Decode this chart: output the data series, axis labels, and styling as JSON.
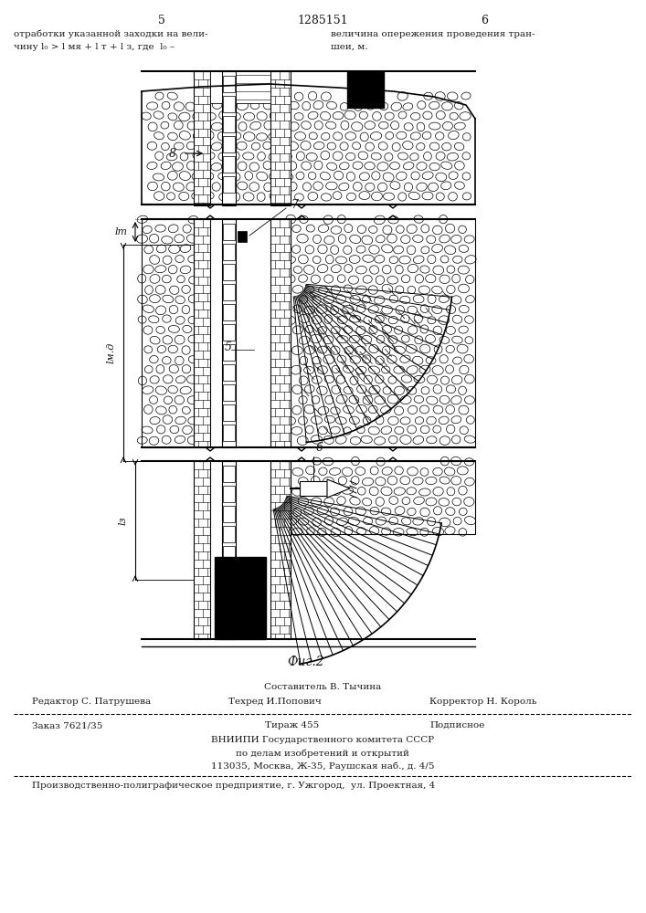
{
  "page_number_left": "5",
  "page_number_center": "1285151",
  "page_number_right": "6",
  "top_text_left1": "отработки указанной заходки на вели-",
  "top_text_left2": "чину l₀ > l мя + l т + l з, где  l₀ –",
  "top_text_right1": "величина опережения проведения тран-",
  "top_text_right2": "шеи, м.",
  "fig_caption": "Фиг.2",
  "composer_label": "Составитель В. Тычина",
  "editor_label": "Редактор С. Патрушева",
  "techred_label": "Техред И.Попович",
  "corrector_label": "Корректор Н. Король",
  "order_label": "Заказ 7621/35",
  "tirazh_label": "Тираж 455",
  "podpisnoe_label": "Подписное",
  "vniiipi_label": "ВНИИПИ Государственного комитета СССР",
  "po_delam_label": "по делам изобретений и открытий",
  "address_label": "113035, Москва, Ж-35, Раушская наб., д. 4/5",
  "factory_label": "Производственно-полиграфическое предприятие, г. Ужгород,  ул. Проектная, 4",
  "label_5": "5",
  "label_6": "6",
  "label_7": "7",
  "label_8": "8",
  "label_lт": "lт",
  "label_lмя": "lм.д",
  "label_lз": "lз",
  "bg_color": "#ffffff",
  "text_color": "#1a1a1a"
}
